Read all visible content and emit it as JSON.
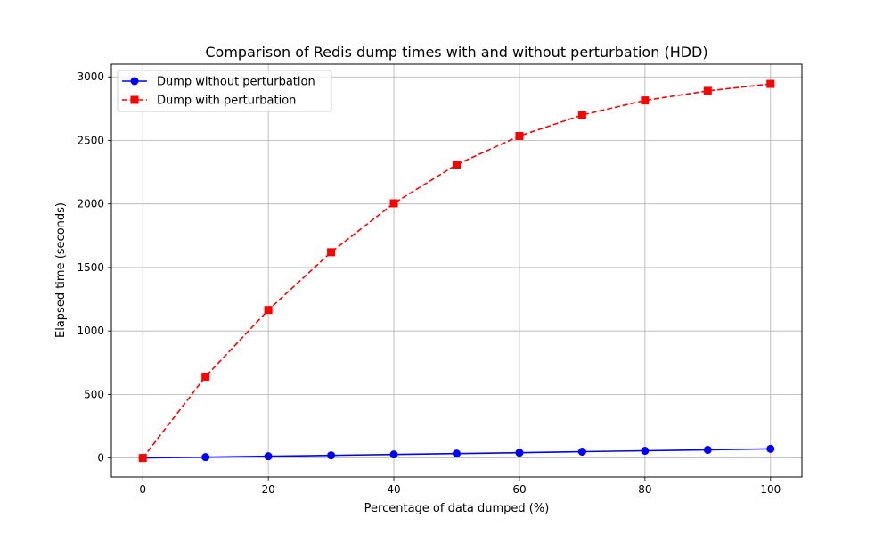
{
  "chart_data": {
    "type": "line",
    "title": "Comparison of Redis dump times with and without perturbation (HDD)",
    "xlabel": "Percentage of data dumped (%)",
    "ylabel": "Elapsed time (seconds)",
    "xlim": [
      -5,
      105
    ],
    "ylim": [
      -150,
      3100
    ],
    "x_ticks": [
      0,
      20,
      40,
      60,
      80,
      100
    ],
    "y_ticks": [
      0,
      500,
      1000,
      1500,
      2000,
      2500,
      3000
    ],
    "grid": true,
    "legend_position": "upper-left",
    "x": [
      0,
      10,
      20,
      30,
      40,
      50,
      60,
      70,
      80,
      90,
      100
    ],
    "series": [
      {
        "name": "Dump without perturbation",
        "values": [
          0,
          7,
          14,
          21,
          28,
          35,
          42,
          50,
          57,
          64,
          72
        ],
        "color": "#0000ff",
        "line_style": "solid",
        "marker": "circle"
      },
      {
        "name": "Dump with perturbation",
        "values": [
          0,
          640,
          1165,
          1620,
          2005,
          2310,
          2535,
          2700,
          2815,
          2890,
          2945
        ],
        "color": "#ff0000",
        "line_style": "dashed",
        "marker": "square"
      }
    ]
  }
}
